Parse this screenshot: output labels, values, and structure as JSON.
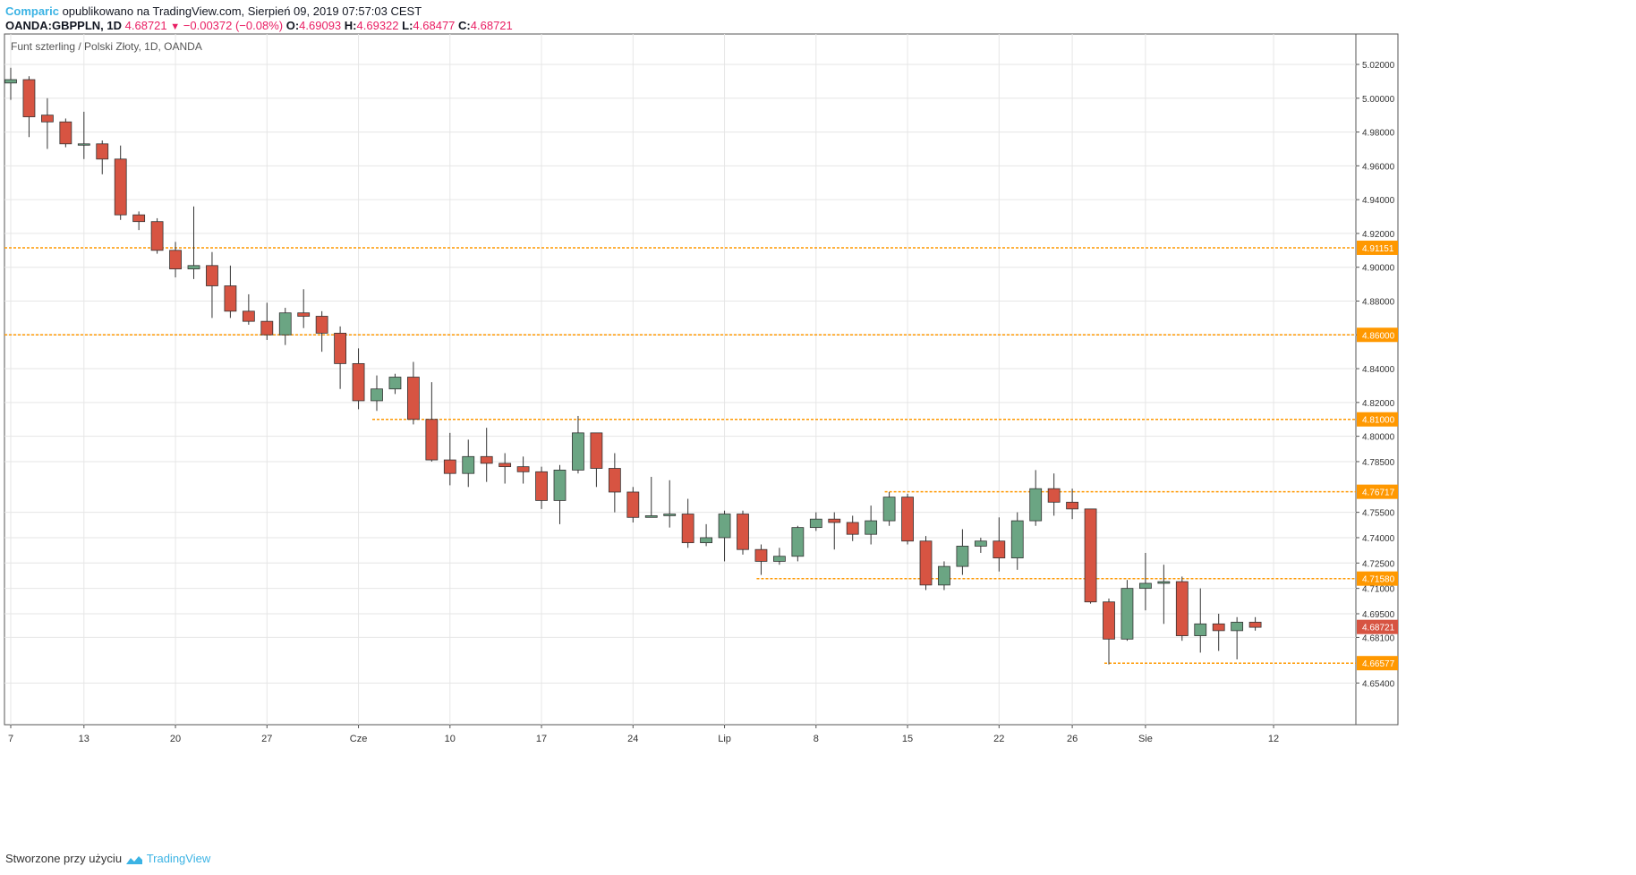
{
  "header": {
    "author": "Comparic",
    "published": " opublikowano na TradingView.com, Sierpień 09, 2019 07:57:03 CEST",
    "symbol": "OANDA:GBPPLN, 1D",
    "last": "4.68721",
    "change": "−0.00372 (−0.08%)",
    "o_label": "O:",
    "o_value": "4.69093",
    "h_label": "H:",
    "h_value": "4.69322",
    "l_label": "L:",
    "l_value": "4.68477",
    "c_label": "C:",
    "c_value": "4.68721"
  },
  "footer": {
    "text": "Stworzone przy użyciu",
    "brand": "TradingView"
  },
  "colors": {
    "up": "#6ba583",
    "down": "#d75442",
    "level": "#ff9800",
    "last": "#d75442",
    "grid": "#e6e6e6"
  },
  "chart_data": {
    "type": "candlestick",
    "title": "Funt szterling / Polski Złoty, 1D, OANDA",
    "ylim": [
      4.645,
      5.03
    ],
    "y_ticks": [
      "5.02000",
      "5.00000",
      "4.98000",
      "4.96000",
      "4.94000",
      "4.92000",
      "4.90000",
      "4.88000",
      "4.86000",
      "4.84000",
      "4.82000",
      "4.80000",
      "4.78500",
      "4.75500",
      "4.74000",
      "4.72500",
      "4.71000",
      "4.69500",
      "4.68100",
      "4.65400"
    ],
    "x_ticks": [
      {
        "label": "7",
        "day": 0
      },
      {
        "label": "13",
        "day": 4
      },
      {
        "label": "20",
        "day": 9
      },
      {
        "label": "27",
        "day": 14
      },
      {
        "label": "Cze",
        "day": 19
      },
      {
        "label": "10",
        "day": 24
      },
      {
        "label": "17",
        "day": 29
      },
      {
        "label": "24",
        "day": 34
      },
      {
        "label": "Lip",
        "day": 39
      },
      {
        "label": "8",
        "day": 44
      },
      {
        "label": "15",
        "day": 49
      },
      {
        "label": "22",
        "day": 54
      },
      {
        "label": "26",
        "day": 58
      },
      {
        "label": "Sie",
        "day": 62
      },
      {
        "label": "12",
        "day": 69
      }
    ],
    "levels": [
      {
        "value": 4.91151,
        "label": "4.91151",
        "from_day": -1
      },
      {
        "value": 4.86,
        "label": "4.86000",
        "from_day": -1
      },
      {
        "value": 4.81,
        "label": "4.81000",
        "from_day": 20
      },
      {
        "value": 4.76717,
        "label": "4.76717",
        "from_day": 48
      },
      {
        "value": 4.7158,
        "label": "4.71580",
        "from_day": 41
      },
      {
        "value": 4.66577,
        "label": "4.66577",
        "from_day": 60
      }
    ],
    "last_price": {
      "value": 4.68721,
      "label": "4.68721"
    },
    "candles": [
      [
        5.009,
        5.018,
        4.999,
        5.011
      ],
      [
        5.011,
        5.013,
        4.977,
        4.989
      ],
      [
        4.99,
        5.0,
        4.97,
        4.986
      ],
      [
        4.986,
        4.988,
        4.971,
        4.973
      ],
      [
        4.973,
        4.992,
        4.964,
        4.973
      ],
      [
        4.973,
        4.975,
        4.955,
        4.964
      ],
      [
        4.964,
        4.972,
        4.928,
        4.931
      ],
      [
        4.931,
        4.933,
        4.922,
        4.927
      ],
      [
        4.927,
        4.929,
        4.908,
        4.91
      ],
      [
        4.91,
        4.915,
        4.894,
        4.899
      ],
      [
        4.899,
        4.936,
        4.893,
        4.901
      ],
      [
        4.901,
        4.909,
        4.87,
        4.889
      ],
      [
        4.889,
        4.901,
        4.87,
        4.874
      ],
      [
        4.874,
        4.884,
        4.866,
        4.868
      ],
      [
        4.868,
        4.879,
        4.857,
        4.86
      ],
      [
        4.86,
        4.876,
        4.854,
        4.873
      ],
      [
        4.873,
        4.887,
        4.864,
        4.871
      ],
      [
        4.871,
        4.874,
        4.85,
        4.861
      ],
      [
        4.861,
        4.865,
        4.828,
        4.843
      ],
      [
        4.843,
        4.852,
        4.816,
        4.821
      ],
      [
        4.821,
        4.836,
        4.815,
        4.828
      ],
      [
        4.828,
        4.837,
        4.825,
        4.835
      ],
      [
        4.835,
        4.844,
        4.807,
        4.81
      ],
      [
        4.81,
        4.832,
        4.785,
        4.786
      ],
      [
        4.786,
        4.802,
        4.771,
        4.778
      ],
      [
        4.778,
        4.798,
        4.77,
        4.788
      ],
      [
        4.788,
        4.805,
        4.773,
        4.784
      ],
      [
        4.784,
        4.79,
        4.772,
        4.782
      ],
      [
        4.782,
        4.788,
        4.772,
        4.779
      ],
      [
        4.779,
        4.782,
        4.757,
        4.762
      ],
      [
        4.762,
        4.783,
        4.748,
        4.78
      ],
      [
        4.78,
        4.812,
        4.778,
        4.802
      ],
      [
        4.802,
        4.802,
        4.77,
        4.781
      ],
      [
        4.781,
        4.79,
        4.755,
        4.767
      ],
      [
        4.767,
        4.77,
        4.749,
        4.752
      ],
      [
        4.752,
        4.776,
        4.753,
        4.753
      ],
      [
        4.753,
        4.774,
        4.746,
        4.754
      ],
      [
        4.754,
        4.763,
        4.734,
        4.737
      ],
      [
        4.737,
        4.748,
        4.735,
        4.74
      ],
      [
        4.74,
        4.756,
        4.726,
        4.754
      ],
      [
        4.754,
        4.756,
        4.73,
        4.733
      ],
      [
        4.733,
        4.736,
        4.718,
        4.726
      ],
      [
        4.726,
        4.734,
        4.724,
        4.729
      ],
      [
        4.729,
        4.747,
        4.726,
        4.746
      ],
      [
        4.746,
        4.755,
        4.744,
        4.751
      ],
      [
        4.751,
        4.755,
        4.733,
        4.749
      ],
      [
        4.749,
        4.753,
        4.738,
        4.742
      ],
      [
        4.742,
        4.759,
        4.736,
        4.75
      ],
      [
        4.75,
        4.767,
        4.747,
        4.764
      ],
      [
        4.764,
        4.766,
        4.736,
        4.738
      ],
      [
        4.738,
        4.741,
        4.709,
        4.712
      ],
      [
        4.712,
        4.726,
        4.709,
        4.723
      ],
      [
        4.723,
        4.745,
        4.718,
        4.735
      ],
      [
        4.735,
        4.74,
        4.731,
        4.738
      ],
      [
        4.738,
        4.752,
        4.72,
        4.728
      ],
      [
        4.728,
        4.755,
        4.721,
        4.75
      ],
      [
        4.75,
        4.78,
        4.747,
        4.769
      ],
      [
        4.769,
        4.778,
        4.753,
        4.761
      ],
      [
        4.761,
        4.769,
        4.751,
        4.757
      ],
      [
        4.757,
        4.757,
        4.701,
        4.702
      ],
      [
        4.702,
        4.704,
        4.665,
        4.68
      ],
      [
        4.68,
        4.715,
        4.679,
        4.71
      ],
      [
        4.71,
        4.731,
        4.697,
        4.713
      ],
      [
        4.713,
        4.724,
        4.689,
        4.714
      ],
      [
        4.714,
        4.717,
        4.679,
        4.682
      ],
      [
        4.682,
        4.71,
        4.672,
        4.689
      ],
      [
        4.689,
        4.695,
        4.673,
        4.685
      ],
      [
        4.685,
        4.693,
        4.668,
        4.69
      ],
      [
        4.69,
        4.693,
        4.685,
        4.687
      ]
    ]
  }
}
